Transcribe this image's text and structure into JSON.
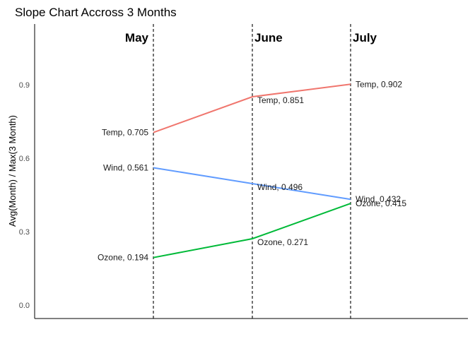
{
  "chart_data": {
    "type": "line",
    "title": "Slope Chart Accross 3 Months",
    "xlabel": "",
    "ylabel": "Avg(Month) / Max(3 Month)",
    "categories": [
      "May",
      "June",
      "July"
    ],
    "ylim": [
      0,
      1.05
    ],
    "y_ticks": [
      "0.0",
      "0.3",
      "0.6",
      "0.9"
    ],
    "grid": false,
    "legend": "none",
    "series": [
      {
        "name": "Temp",
        "color": "#f0766e",
        "values": [
          0.705,
          0.851,
          0.902
        ],
        "labels": [
          "Temp, 0.705",
          "Temp, 0.851",
          "Temp, 0.902"
        ]
      },
      {
        "name": "Wind",
        "color": "#619cff",
        "values": [
          0.561,
          0.496,
          0.432
        ],
        "labels": [
          "Wind, 0.561",
          "Wind, 0.496",
          "Wind, 0.432"
        ]
      },
      {
        "name": "Ozone",
        "color": "#00ba38",
        "values": [
          0.194,
          0.271,
          0.415
        ],
        "labels": [
          "Ozone, 0.194",
          "Ozone, 0.271",
          "Ozone, 0.415"
        ]
      }
    ]
  }
}
